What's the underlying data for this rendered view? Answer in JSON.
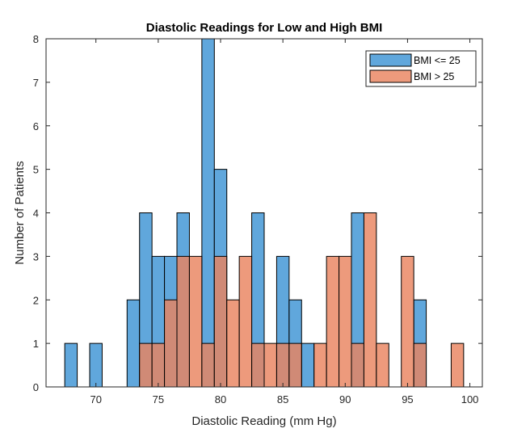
{
  "chart_data": {
    "type": "histogram",
    "title": "Diastolic Readings for Low and High BMI",
    "xlabel": "Diastolic Reading (mm Hg)",
    "ylabel": "Number of Patients",
    "xlim": [
      66,
      101
    ],
    "ylim": [
      0,
      8
    ],
    "xticks": [
      70,
      75,
      80,
      85,
      90,
      95,
      100
    ],
    "yticks": [
      0,
      1,
      2,
      3,
      4,
      5,
      6,
      7,
      8
    ],
    "bin_edges": [
      67.5,
      68.5,
      69.5,
      70.5,
      71.5,
      72.5,
      73.5,
      74.5,
      75.5,
      76.5,
      77.5,
      78.5,
      79.5,
      80.5,
      81.5,
      82.5,
      83.5,
      84.5,
      85.5,
      86.5,
      87.5,
      88.5,
      89.5,
      90.5,
      91.5,
      92.5,
      93.5,
      94.5,
      95.5,
      96.5,
      97.5,
      98.5,
      99.5
    ],
    "legend_location": "top-right",
    "grid": false,
    "series": [
      {
        "name": "BMI <= 25",
        "color": "#4A9BD7",
        "values": [
          1,
          0,
          1,
          0,
          0,
          2,
          4,
          3,
          3,
          4,
          0,
          8,
          5,
          0,
          0,
          4,
          0,
          3,
          2,
          1,
          0,
          0,
          0,
          4,
          0,
          0,
          0,
          0,
          2,
          0,
          0,
          0
        ]
      },
      {
        "name": "BMI > 25",
        "color": "#E9845F",
        "values": [
          0,
          0,
          0,
          0,
          0,
          0,
          1,
          1,
          2,
          3,
          3,
          1,
          3,
          2,
          3,
          1,
          1,
          1,
          1,
          0,
          1,
          3,
          3,
          1,
          4,
          1,
          0,
          3,
          1,
          0,
          0,
          1
        ]
      }
    ]
  }
}
